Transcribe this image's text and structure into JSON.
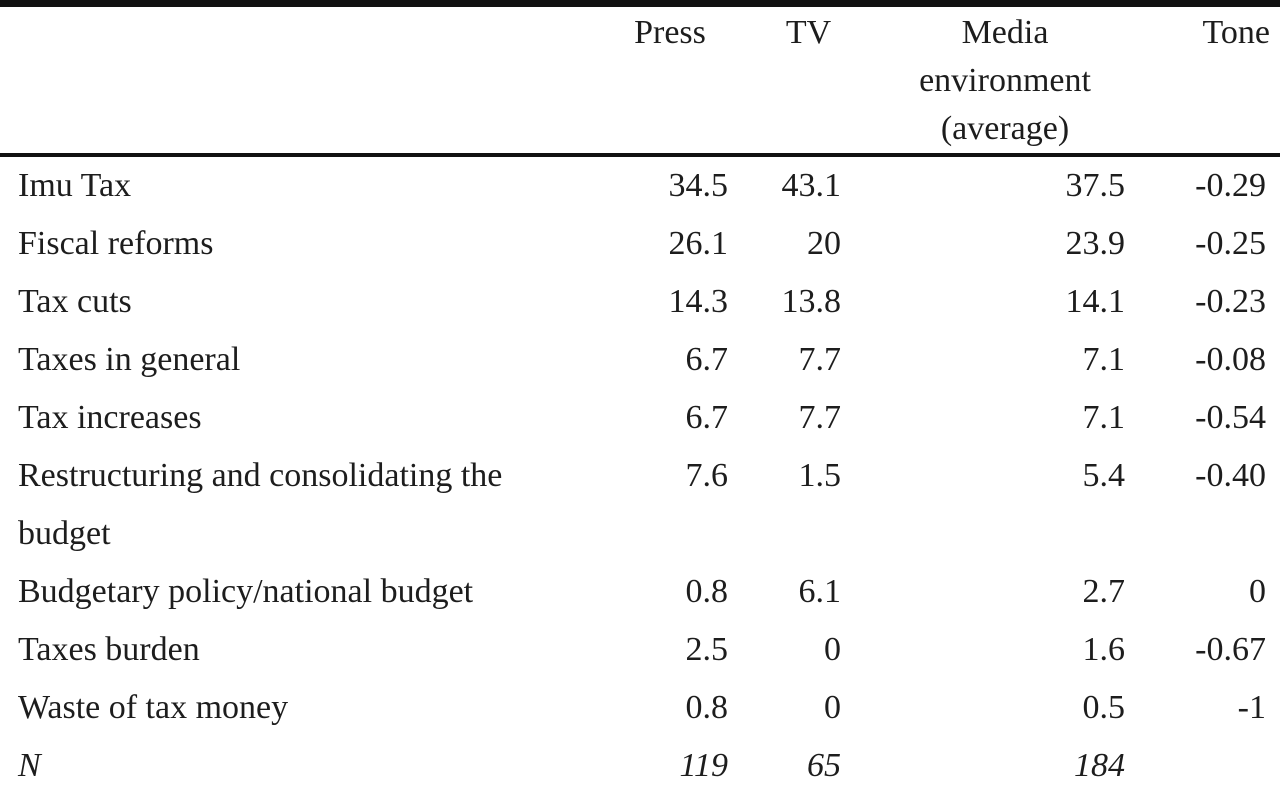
{
  "colors": {
    "background": "#ffffff",
    "text": "#1d1d1d",
    "rule": "#111111"
  },
  "table": {
    "columns": [
      {
        "label": ""
      },
      {
        "label": "Press"
      },
      {
        "label": "TV"
      },
      {
        "label": "Media environment (average)",
        "lines": [
          "Media",
          "environment",
          "(average)"
        ]
      },
      {
        "label": "Tone"
      }
    ],
    "rows": [
      {
        "topic": "Imu Tax",
        "press": "34.5",
        "tv": "43.1",
        "media": "37.5",
        "tone": "-0.29"
      },
      {
        "topic": "Fiscal reforms",
        "press": "26.1",
        "tv": "20",
        "media": "23.9",
        "tone": "-0.25"
      },
      {
        "topic": "Tax cuts",
        "press": "14.3",
        "tv": "13.8",
        "media": "14.1",
        "tone": "-0.23"
      },
      {
        "topic": "Taxes in general",
        "press": "6.7",
        "tv": "7.7",
        "media": "7.1",
        "tone": "-0.08"
      },
      {
        "topic": "Tax increases",
        "press": "6.7",
        "tv": "7.7",
        "media": "7.1",
        "tone": "-0.54"
      },
      {
        "topic": "Restructuring and consolidating the budget",
        "press": "7.6",
        "tv": "1.5",
        "media": "5.4",
        "tone": "-0.40"
      },
      {
        "topic": "Budgetary policy/national budget",
        "press": "0.8",
        "tv": "6.1",
        "media": "2.7",
        "tone": "0"
      },
      {
        "topic": "Taxes burden",
        "press": "2.5",
        "tv": "0",
        "media": "1.6",
        "tone": "-0.67"
      },
      {
        "topic": "Waste of tax money",
        "press": "0.8",
        "tv": "0",
        "media": "0.5",
        "tone": "-1"
      },
      {
        "topic": "N",
        "press": "119",
        "tv": "65",
        "media": "184",
        "tone": ""
      }
    ]
  }
}
